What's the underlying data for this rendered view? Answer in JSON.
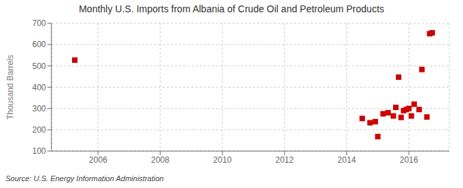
{
  "chart_data": {
    "type": "scatter",
    "title": "Monthly U.S. Imports from Albania of Crude Oil and Petroleum Products",
    "y_label": "Thousand Barrels",
    "source": "Source: U.S. Energy Information Administration",
    "color": "#cc0000",
    "marker": "square",
    "grid": true,
    "xlim": [
      2004.5,
      2017.3
    ],
    "ylim": [
      100,
      700
    ],
    "xticks": [
      2006,
      2008,
      2010,
      2012,
      2014,
      2016
    ],
    "yticks": [
      100,
      200,
      300,
      400,
      500,
      600,
      700
    ],
    "x": [
      2005.25,
      2014.5,
      2014.75,
      2014.92,
      2015.0,
      2015.17,
      2015.33,
      2015.5,
      2015.58,
      2015.67,
      2015.75,
      2015.83,
      2015.92,
      2016.0,
      2016.08,
      2016.17,
      2016.33,
      2016.42,
      2016.58,
      2016.67,
      2016.75
    ],
    "values": [
      527,
      253,
      233,
      238,
      168,
      275,
      280,
      265,
      305,
      447,
      258,
      290,
      295,
      300,
      265,
      320,
      295,
      483,
      260,
      651,
      655
    ]
  }
}
